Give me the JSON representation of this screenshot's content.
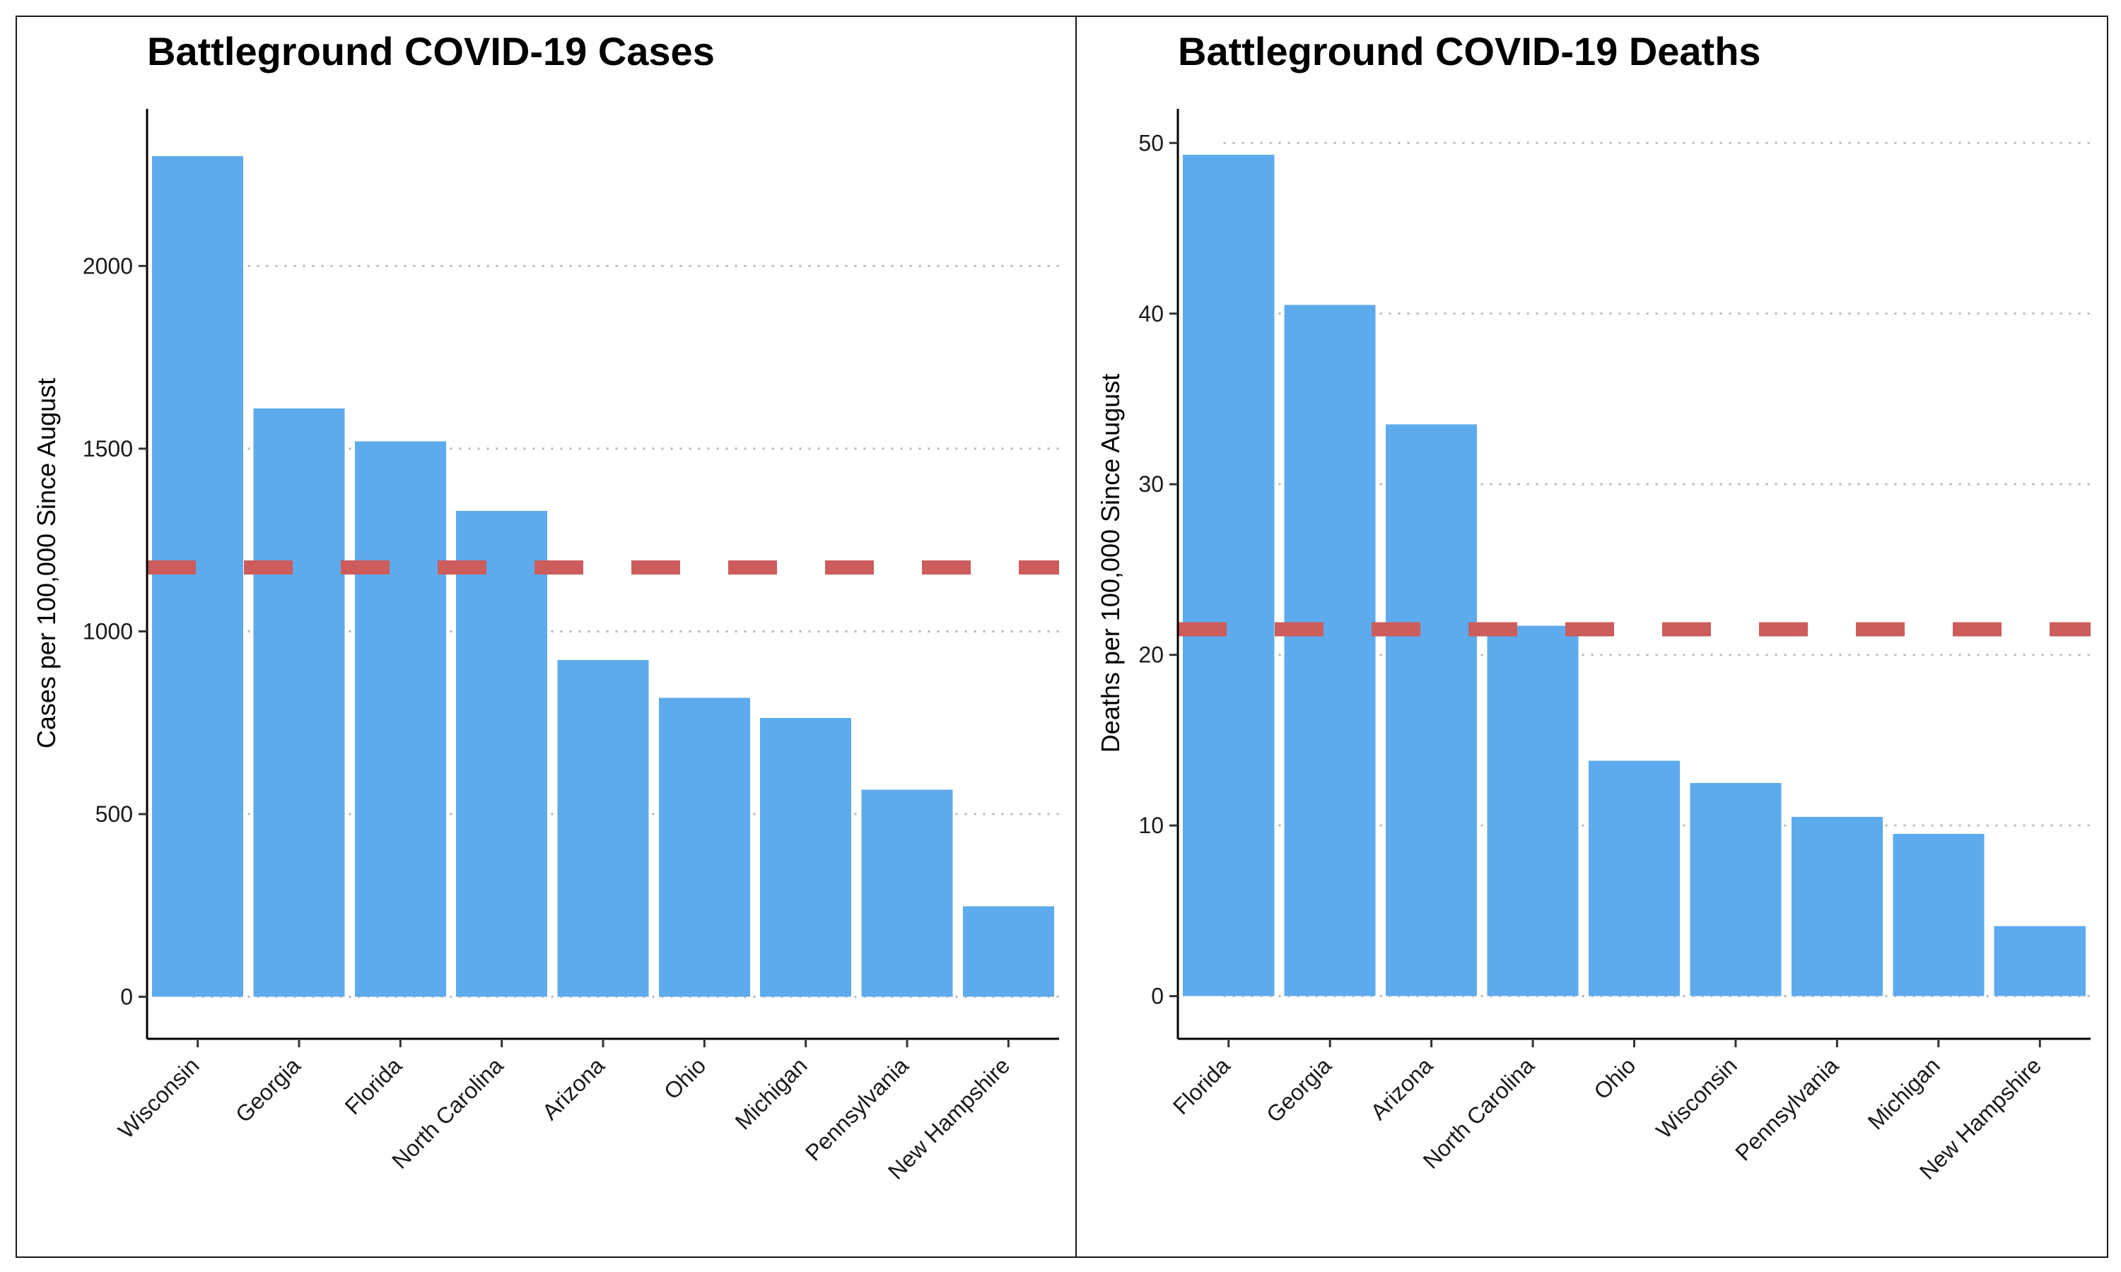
{
  "chart_data": [
    {
      "type": "bar",
      "title": "Battleground COVID-19 Cases",
      "ylabel": "Cases per 100,000 Since August",
      "xlabel": "",
      "categories": [
        "Wisconsin",
        "Georgia",
        "Florida",
        "North Carolina",
        "Arizona",
        "Ohio",
        "Michigan",
        "Pennsylvania",
        "New Hampshire"
      ],
      "values": [
        2300,
        1610,
        1520,
        1330,
        922,
        818,
        763,
        567,
        248
      ],
      "yticks": [
        0,
        500,
        1000,
        1500,
        2000
      ],
      "ylim": [
        -115,
        2430
      ],
      "reference_line": 1175,
      "grid": "horizontal dotted",
      "bar_color": "#5DABEC",
      "reference_line_color": "#CD5C5C"
    },
    {
      "type": "bar",
      "title": "Battleground COVID-19 Deaths",
      "ylabel": "Deaths per 100,000 Since August",
      "xlabel": "",
      "categories": [
        "Florida",
        "Georgia",
        "Arizona",
        "North Carolina",
        "Ohio",
        "Wisconsin",
        "Pennsylvania",
        "Michigan",
        "New Hampshire"
      ],
      "values": [
        49.3,
        40.5,
        33.5,
        21.7,
        13.8,
        12.5,
        10.5,
        9.5,
        4.1
      ],
      "yticks": [
        0,
        10,
        20,
        30,
        40,
        50
      ],
      "ylim": [
        -2.5,
        52
      ],
      "reference_line": 21.5,
      "grid": "horizontal dotted",
      "bar_color": "#5DABEC",
      "reference_line_color": "#CD5C5C"
    }
  ]
}
